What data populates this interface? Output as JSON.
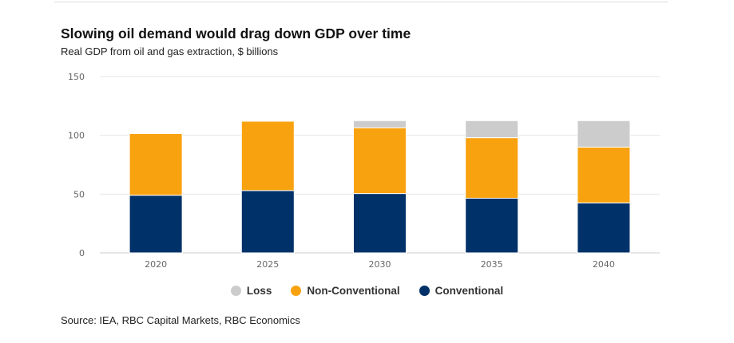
{
  "title": "Slowing oil demand would drag down GDP over time",
  "subtitle": "Real GDP from oil and gas extraction, $ billions",
  "source": "Source: IEA, RBC Capital Markets, RBC Economics",
  "chart_data": {
    "type": "bar",
    "stacked": true,
    "categories": [
      "2020",
      "2025",
      "2030",
      "2035",
      "2040"
    ],
    "ylim": [
      0,
      150
    ],
    "yticks": [
      0,
      50,
      100,
      150
    ],
    "grid": true,
    "legend_placement": "bottom",
    "series": [
      {
        "name": "Conventional",
        "color": "#003168",
        "values": [
          49,
          53,
          50.5,
          46.5,
          42.5
        ]
      },
      {
        "name": "Non-Conventional",
        "color": "#f9a20f",
        "values": [
          52.5,
          59,
          56,
          51.5,
          47.5
        ]
      },
      {
        "name": "Loss",
        "color": "#cccccc",
        "values": [
          0,
          0,
          6,
          14.5,
          22.5
        ]
      }
    ],
    "legend_order": [
      "Loss",
      "Non-Conventional",
      "Conventional"
    ]
  }
}
